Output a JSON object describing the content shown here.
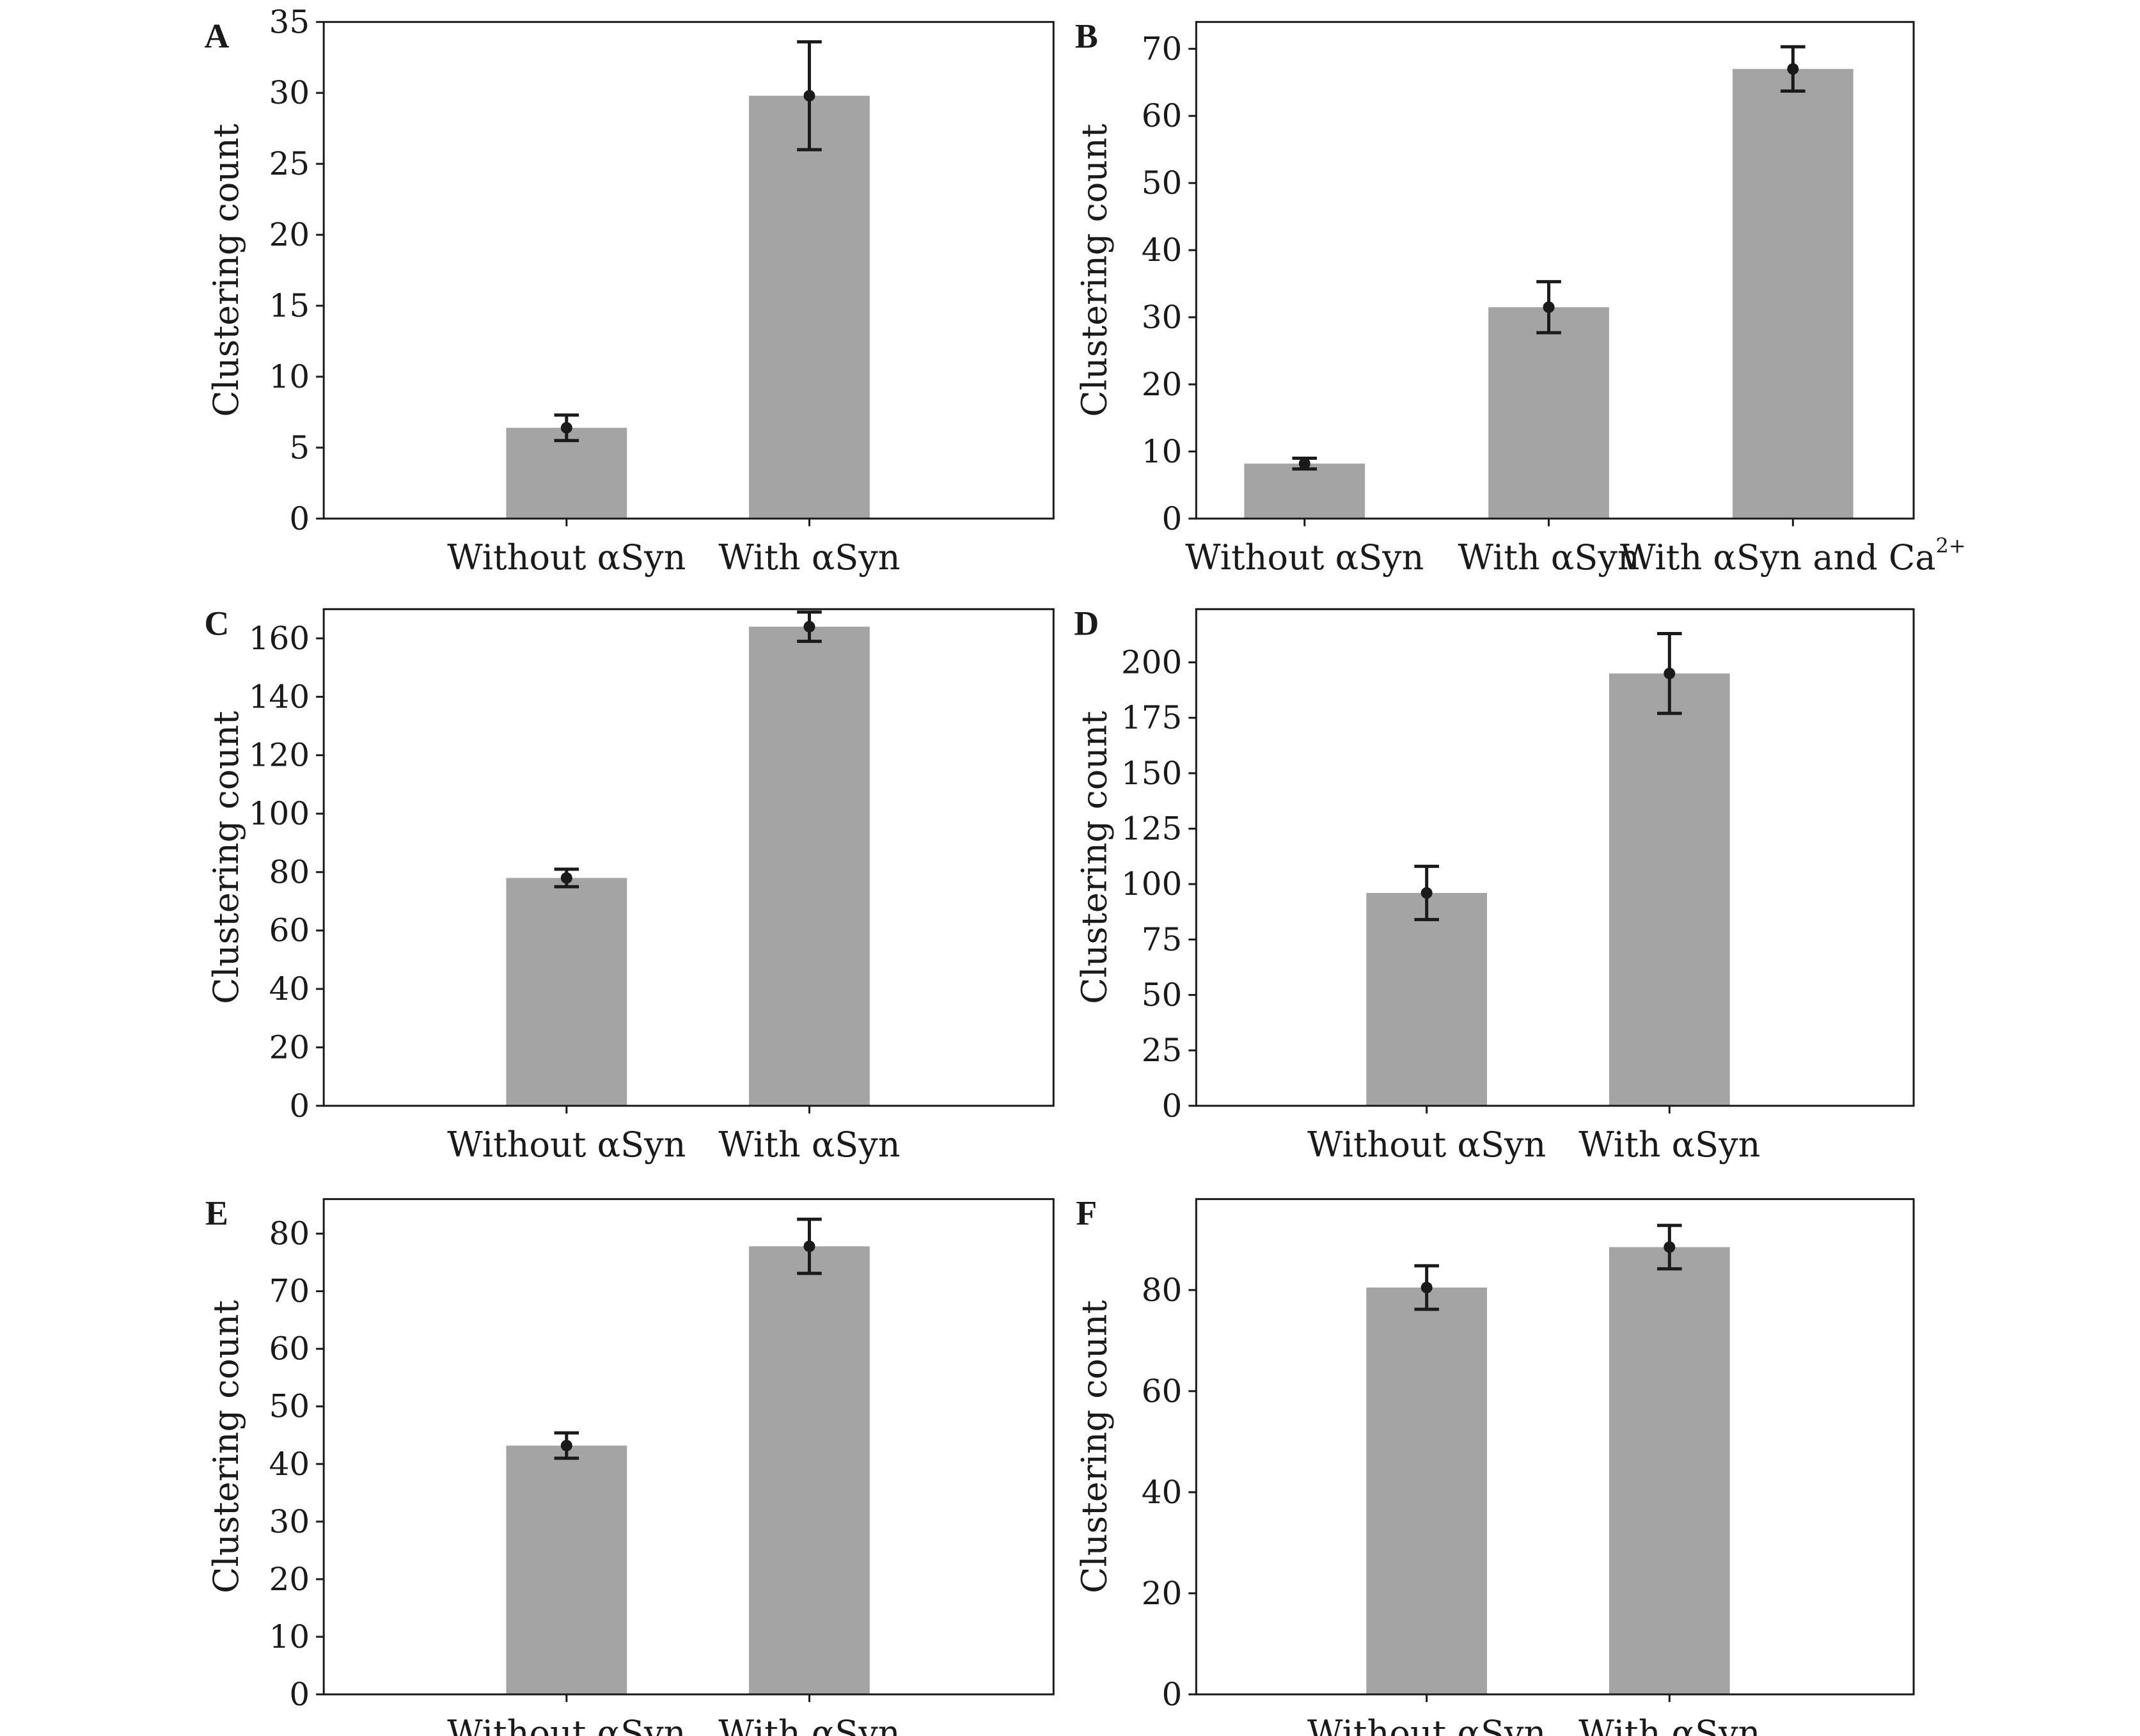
{
  "colors": {
    "bar": "#a4a4a4",
    "ink": "#1a1a1a",
    "background": "#ffffff"
  },
  "chart_data": [
    {
      "panel": "A",
      "type": "bar",
      "ylabel": "Clustering count",
      "categories": [
        "Without αSyn",
        "With αSyn"
      ],
      "values": [
        6.4,
        29.8
      ],
      "errors": [
        0.9,
        3.8
      ],
      "ylim": [
        0,
        35
      ],
      "yticks": [
        0,
        5,
        10,
        15,
        20,
        25,
        30,
        35
      ],
      "grid": false
    },
    {
      "panel": "B",
      "type": "bar",
      "ylabel": "Clustering count",
      "categories": [
        "Without αSyn",
        "With αSyn",
        "With αSyn and Ca"
      ],
      "category_superscripts": [
        "",
        "",
        "2+"
      ],
      "values": [
        8.2,
        31.5,
        67.0
      ],
      "errors": [
        0.8,
        3.8,
        3.3
      ],
      "ylim": [
        0,
        74
      ],
      "yticks": [
        0,
        10,
        20,
        30,
        40,
        50,
        60,
        70
      ],
      "grid": false
    },
    {
      "panel": "C",
      "type": "bar",
      "ylabel": "Clustering count",
      "categories": [
        "Without αSyn",
        "With αSyn"
      ],
      "values": [
        78,
        164
      ],
      "errors": [
        3,
        5
      ],
      "ylim": [
        0,
        170
      ],
      "yticks": [
        0,
        20,
        40,
        60,
        80,
        100,
        120,
        140,
        160
      ],
      "grid": false
    },
    {
      "panel": "D",
      "type": "bar",
      "ylabel": "Clustering count",
      "categories": [
        "Without αSyn",
        "With αSyn"
      ],
      "values": [
        96,
        195
      ],
      "errors": [
        12,
        18
      ],
      "ylim": [
        0,
        224
      ],
      "yticks": [
        0,
        25,
        50,
        75,
        100,
        125,
        150,
        175,
        200
      ],
      "grid": false
    },
    {
      "panel": "E",
      "type": "bar",
      "ylabel": "Clustering count",
      "categories": [
        "Without αSyn",
        "With αSyn"
      ],
      "values": [
        43.2,
        77.8
      ],
      "errors": [
        2.2,
        4.7
      ],
      "ylim": [
        0,
        86
      ],
      "yticks": [
        0,
        10,
        20,
        30,
        40,
        50,
        60,
        70,
        80
      ],
      "grid": false
    },
    {
      "panel": "F",
      "type": "bar",
      "ylabel": "Clustering count",
      "categories": [
        "Without αSyn",
        "With αSyn"
      ],
      "values": [
        80.5,
        88.5
      ],
      "errors": [
        4.3,
        4.3
      ],
      "ylim": [
        0,
        98
      ],
      "yticks": [
        0,
        20,
        40,
        60,
        80
      ],
      "grid": false
    }
  ]
}
